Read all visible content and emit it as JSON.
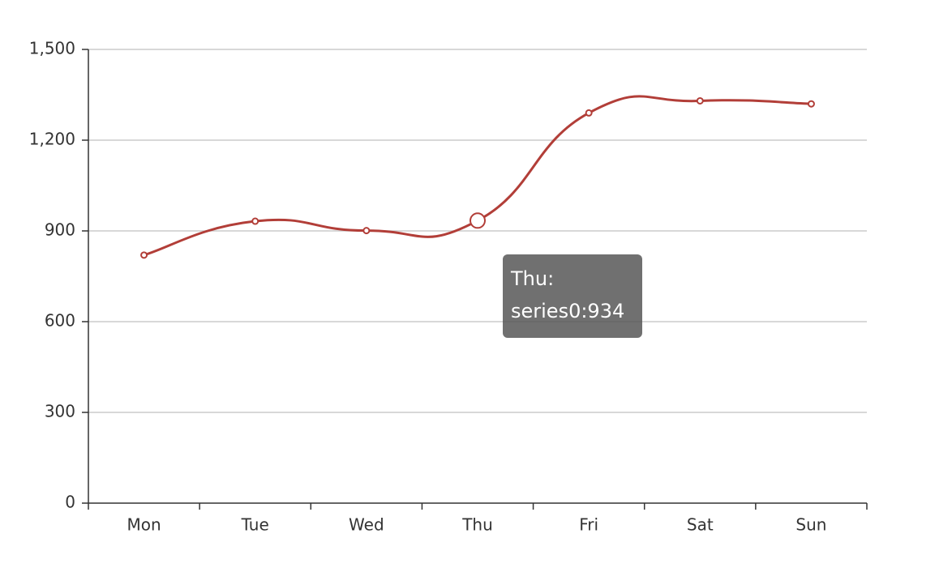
{
  "chart_data": {
    "type": "line",
    "categories": [
      "Mon",
      "Tue",
      "Wed",
      "Thu",
      "Fri",
      "Sat",
      "Sun"
    ],
    "values": [
      820,
      932,
      901,
      934,
      1290,
      1330,
      1320
    ],
    "color": "#b23e38",
    "smooth": true,
    "ylim": [
      0,
      1500
    ],
    "yticks": [
      0,
      300,
      600,
      900,
      {
        "value": 1200,
        "label": "1,200"
      },
      {
        "value": 1500,
        "label": "1,500"
      }
    ],
    "grid": true,
    "tooltip": {
      "title": "Thu:",
      "text": "series0:934"
    }
  }
}
